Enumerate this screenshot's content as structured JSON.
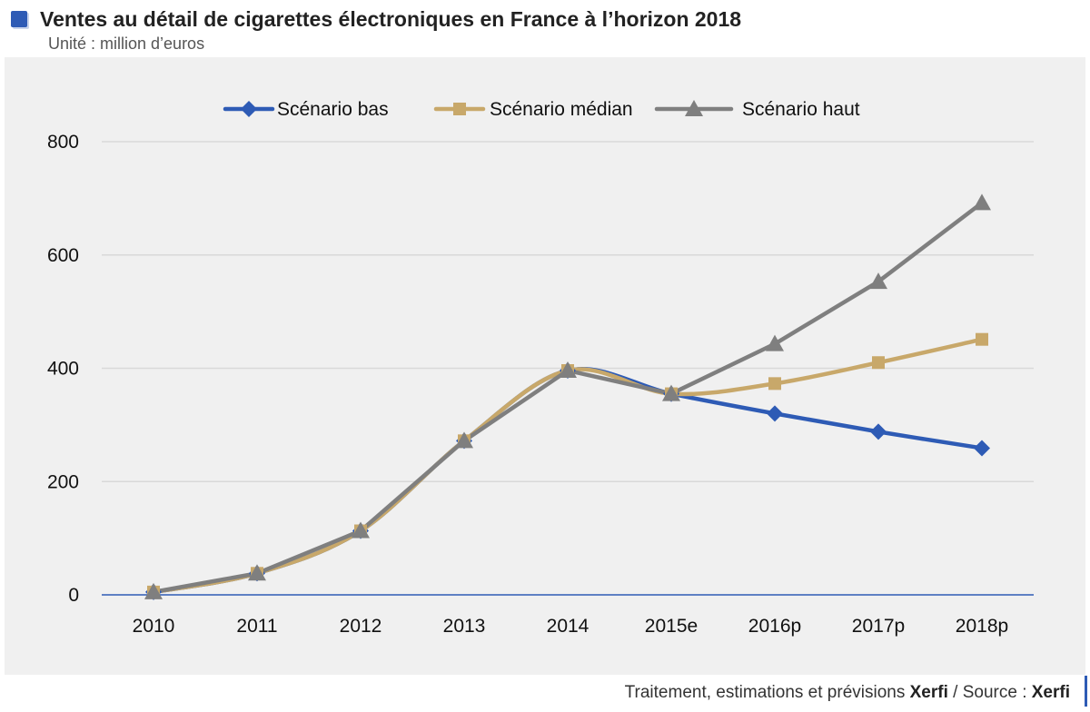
{
  "header": {
    "title": "Ventes au détail de cigarettes électroniques en France à l’horizon 2018",
    "subtitle": "Unité : million d’euros"
  },
  "footer": {
    "prefix": "Traitement, estimations et prévisions ",
    "brand1": "Xerfi",
    "middle": " / Source : ",
    "brand2": "Xerfi"
  },
  "colors": {
    "bas": "#2E5BB5",
    "median": "#C8A86A",
    "haut": "#7F7F7F",
    "grid": "#d9d9d9",
    "axis": "#2E5BB5"
  },
  "chart_data": {
    "type": "line",
    "title": "Ventes au détail de cigarettes électroniques en France à l’horizon 2018",
    "ylabel": "million d’euros",
    "xlabel": "",
    "ylim": [
      0,
      800
    ],
    "yticks": [
      0,
      200,
      400,
      600,
      800
    ],
    "grid": true,
    "legend_position": "top-center",
    "categories": [
      "2010",
      "2011",
      "2012",
      "2013",
      "2014",
      "2015e",
      "2016p",
      "2017p",
      "2018p"
    ],
    "series": [
      {
        "name": "Scénario bas",
        "key": "bas",
        "marker": "diamond",
        "values": [
          5,
          38,
          113,
          272,
          396,
          355,
          320,
          288,
          259
        ]
      },
      {
        "name": "Scénario médian",
        "key": "median",
        "marker": "square",
        "values": [
          5,
          38,
          113,
          272,
          396,
          355,
          373,
          410,
          451
        ]
      },
      {
        "name": "Scénario haut",
        "key": "haut",
        "marker": "triangle",
        "values": [
          5,
          38,
          113,
          272,
          396,
          355,
          443,
          553,
          692
        ]
      }
    ]
  }
}
